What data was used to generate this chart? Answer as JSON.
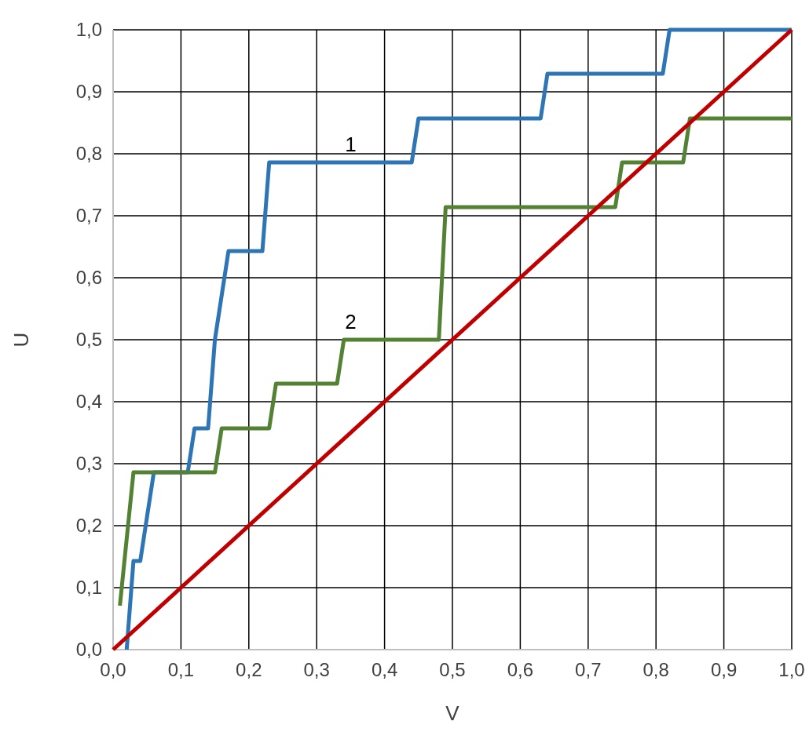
{
  "chart_data": {
    "type": "line",
    "xlabel": "V",
    "ylabel": "U",
    "xlim": [
      0,
      1
    ],
    "ylim": [
      0,
      1
    ],
    "xticks": [
      {
        "value": 0,
        "label": "0,0"
      },
      {
        "value": 0.1,
        "label": "0,1"
      },
      {
        "value": 0.2,
        "label": "0,2"
      },
      {
        "value": 0.3,
        "label": "0,3"
      },
      {
        "value": 0.4,
        "label": "0,4"
      },
      {
        "value": 0.5,
        "label": "0,5"
      },
      {
        "value": 0.6,
        "label": "0,6"
      },
      {
        "value": 0.7,
        "label": "0,7"
      },
      {
        "value": 0.8,
        "label": "0,8"
      },
      {
        "value": 0.9,
        "label": "0,9"
      },
      {
        "value": 1,
        "label": "1,0"
      }
    ],
    "yticks": [
      {
        "value": 0,
        "label": "0,0"
      },
      {
        "value": 0.1,
        "label": "0,1"
      },
      {
        "value": 0.2,
        "label": "0,2"
      },
      {
        "value": 0.3,
        "label": "0,3"
      },
      {
        "value": 0.4,
        "label": "0,4"
      },
      {
        "value": 0.5,
        "label": "0,5"
      },
      {
        "value": 0.6,
        "label": "0,6"
      },
      {
        "value": 0.7,
        "label": "0,7"
      },
      {
        "value": 0.8,
        "label": "0,8"
      },
      {
        "value": 0.9,
        "label": "0,9"
      },
      {
        "value": 1,
        "label": "1,0"
      }
    ],
    "grid": true,
    "marker": "none",
    "line_style": "solid",
    "series": [
      {
        "name": "1",
        "color": "#2e75b6",
        "x": [
          0.02,
          0.03,
          0.04,
          0.06,
          0.11,
          0.12,
          0.14,
          0.15,
          0.17,
          0.22,
          0.23,
          0.44,
          0.45,
          0.63,
          0.64,
          0.81,
          0.82,
          1
        ],
        "values": [
          0,
          0.143,
          0.143,
          0.286,
          0.286,
          0.357,
          0.357,
          0.5,
          0.643,
          0.643,
          0.786,
          0.786,
          0.857,
          0.857,
          0.929,
          0.929,
          1,
          1
        ]
      },
      {
        "name": "2",
        "color": "#548235",
        "x": [
          0.01,
          0.03,
          0.15,
          0.16,
          0.23,
          0.24,
          0.33,
          0.34,
          0.48,
          0.49,
          0.74,
          0.75,
          0.84,
          0.85,
          1
        ],
        "values": [
          0.071,
          0.286,
          0.286,
          0.357,
          0.357,
          0.429,
          0.429,
          0.5,
          0.5,
          0.714,
          0.714,
          0.786,
          0.786,
          0.857,
          0.857
        ]
      },
      {
        "color": "#c00000",
        "x": [
          0,
          1
        ],
        "values": [
          0,
          1
        ]
      }
    ]
  }
}
